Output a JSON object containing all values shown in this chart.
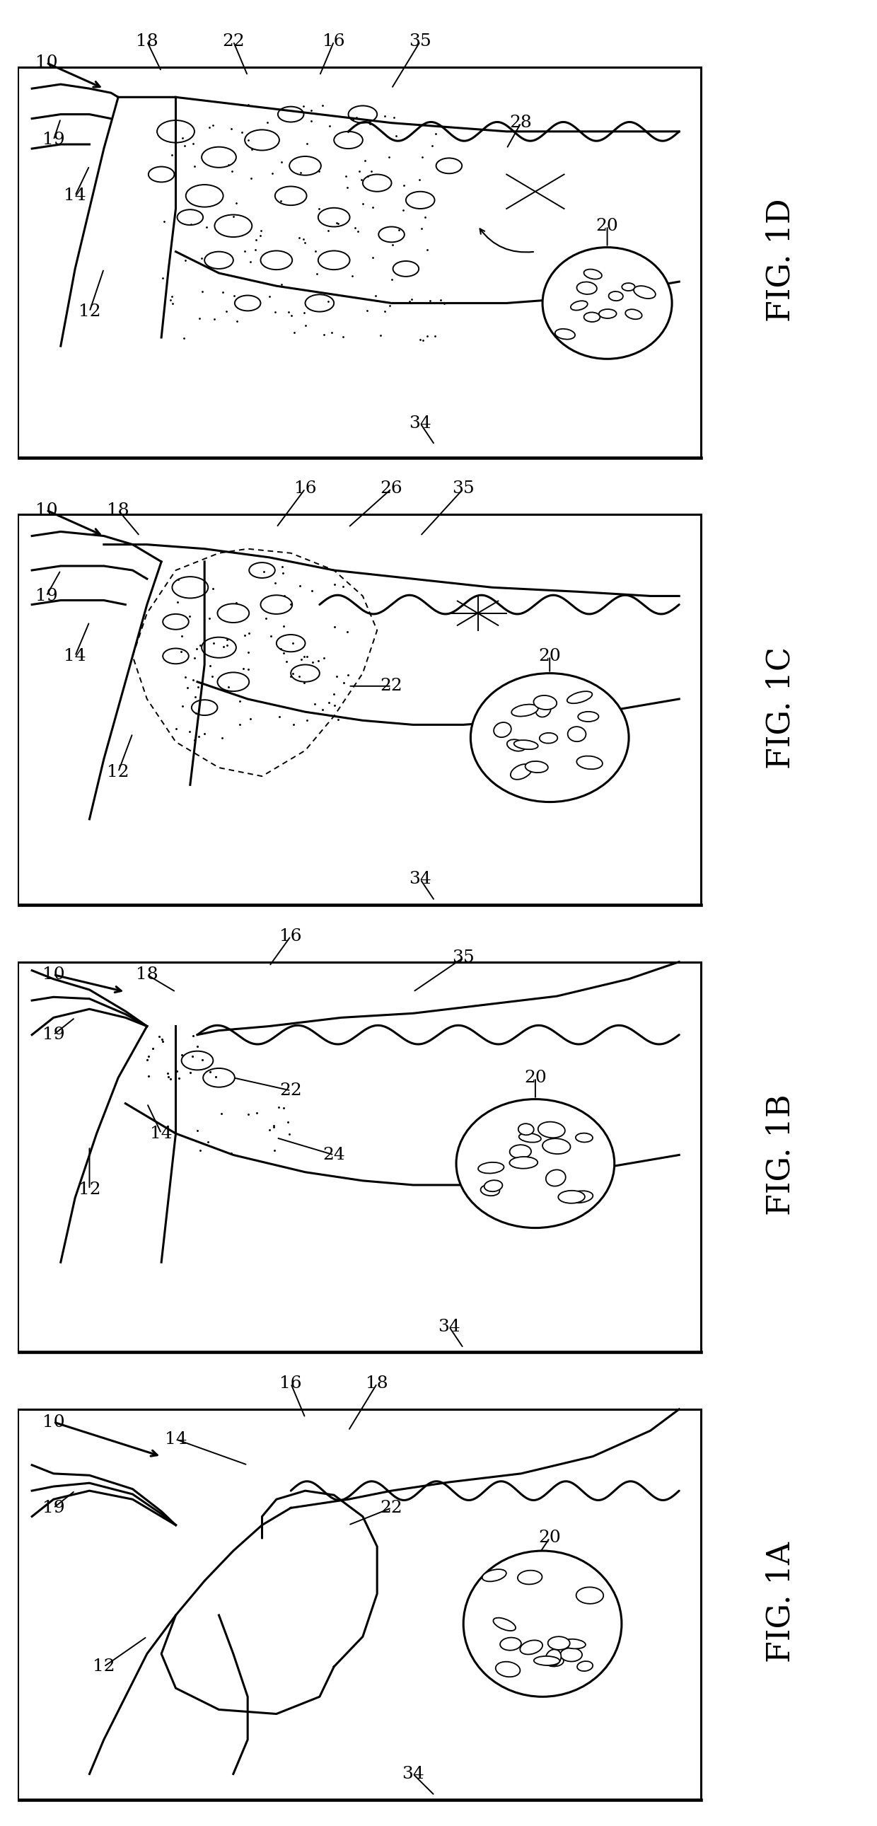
{
  "fig_width": 12.4,
  "fig_height": 25.81,
  "bg_color": "#ffffff",
  "lc": "#000000",
  "lw": 2.2,
  "lw_thin": 1.4,
  "label_fs": 18,
  "fig_label_fs": 32,
  "panels": [
    "FIG. 1D",
    "FIG. 1C",
    "FIG. 1B",
    "FIG. 1A"
  ]
}
